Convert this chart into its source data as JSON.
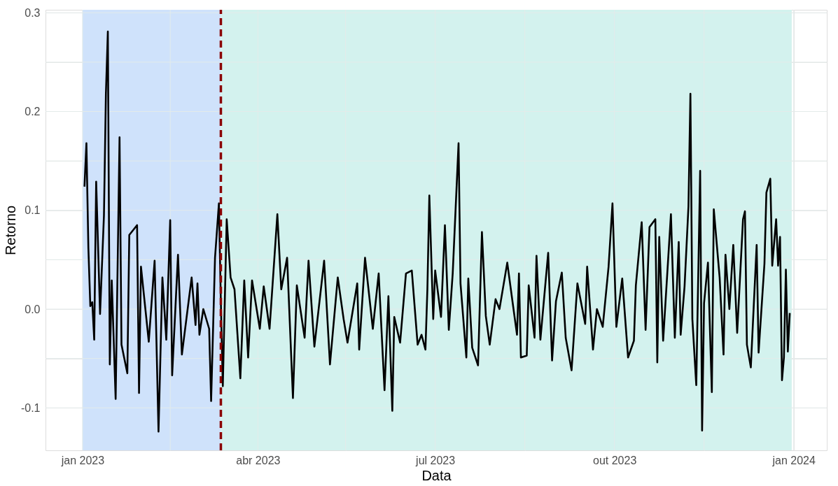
{
  "chart_data": {
    "type": "line",
    "xlabel": "Data",
    "ylabel": "Retorno",
    "x": [
      "2023-01-02",
      "2023-01-03",
      "2023-01-04",
      "2023-01-05",
      "2023-01-06",
      "2023-01-07",
      "2023-01-08",
      "2023-01-10",
      "2023-01-12",
      "2023-01-13",
      "2023-01-14",
      "2023-01-15",
      "2023-01-16",
      "2023-01-18",
      "2023-01-20",
      "2023-01-21",
      "2023-01-24",
      "2023-01-25",
      "2023-01-29",
      "2023-01-30",
      "2023-01-31",
      "2023-02-04",
      "2023-02-07",
      "2023-02-09",
      "2023-02-11",
      "2023-02-13",
      "2023-02-15",
      "2023-02-16",
      "2023-02-19",
      "2023-02-21",
      "2023-02-26",
      "2023-02-28",
      "2023-03-01",
      "2023-03-02",
      "2023-03-04",
      "2023-03-07",
      "2023-03-08",
      "2023-03-10",
      "2023-03-12",
      "2023-03-13",
      "2023-03-14",
      "2023-03-16",
      "2023-03-18",
      "2023-03-20",
      "2023-03-23",
      "2023-03-25",
      "2023-03-27",
      "2023-03-29",
      "2023-04-02",
      "2023-04-04",
      "2023-04-07",
      "2023-04-11",
      "2023-04-13",
      "2023-04-16",
      "2023-04-19",
      "2023-04-21",
      "2023-04-25",
      "2023-04-27",
      "2023-04-30",
      "2023-05-05",
      "2023-05-08",
      "2023-05-12",
      "2023-05-15",
      "2023-05-17",
      "2023-05-22",
      "2023-05-23",
      "2023-05-26",
      "2023-05-30",
      "2023-06-02",
      "2023-06-05",
      "2023-06-07",
      "2023-06-09",
      "2023-06-10",
      "2023-06-13",
      "2023-06-16",
      "2023-06-19",
      "2023-06-22",
      "2023-06-24",
      "2023-06-26",
      "2023-06-27",
      "2023-06-28",
      "2023-06-30",
      "2023-07-01",
      "2023-07-04",
      "2023-07-06",
      "2023-07-08",
      "2023-07-10",
      "2023-07-13",
      "2023-07-14",
      "2023-07-17",
      "2023-07-18",
      "2023-07-20",
      "2023-07-23",
      "2023-07-25",
      "2023-07-27",
      "2023-07-29",
      "2023-08-01",
      "2023-08-03",
      "2023-08-07",
      "2023-08-10",
      "2023-08-12",
      "2023-08-13",
      "2023-08-14",
      "2023-08-17",
      "2023-08-18",
      "2023-08-21",
      "2023-08-22",
      "2023-08-24",
      "2023-08-28",
      "2023-08-30",
      "2023-09-01",
      "2023-09-04",
      "2023-09-06",
      "2023-09-09",
      "2023-09-12",
      "2023-09-16",
      "2023-09-17",
      "2023-09-20",
      "2023-09-22",
      "2023-09-25",
      "2023-09-28",
      "2023-09-30",
      "2023-10-02",
      "2023-10-05",
      "2023-10-08",
      "2023-10-11",
      "2023-10-12",
      "2023-10-15",
      "2023-10-17",
      "2023-10-19",
      "2023-10-22",
      "2023-10-23",
      "2023-10-24",
      "2023-10-26",
      "2023-10-30",
      "2023-11-01",
      "2023-11-03",
      "2023-11-04",
      "2023-11-06",
      "2023-11-08",
      "2023-11-09",
      "2023-11-10",
      "2023-11-12",
      "2023-11-14",
      "2023-11-15",
      "2023-11-16",
      "2023-11-18",
      "2023-11-20",
      "2023-11-21",
      "2023-11-24",
      "2023-11-26",
      "2023-11-27",
      "2023-11-29",
      "2023-12-01",
      "2023-12-03",
      "2023-12-06",
      "2023-12-07",
      "2023-12-08",
      "2023-12-10",
      "2023-12-13",
      "2023-12-14",
      "2023-12-17",
      "2023-12-18",
      "2023-12-20",
      "2023-12-21",
      "2023-12-23",
      "2023-12-24",
      "2023-12-25",
      "2023-12-26",
      "2023-12-27",
      "2023-12-28",
      "2023-12-29",
      "2023-12-30"
    ],
    "series": [
      {
        "color": "#000000",
        "values": [
          0.124,
          0.168,
          0.062,
          0.003,
          0.007,
          -0.031,
          0.129,
          -0.005,
          0.095,
          0.218,
          0.281,
          -0.056,
          0.029,
          -0.091,
          0.174,
          -0.036,
          -0.065,
          0.075,
          0.085,
          -0.085,
          0.043,
          -0.033,
          0.049,
          -0.124,
          0.032,
          -0.031,
          0.09,
          -0.067,
          0.055,
          -0.046,
          0.032,
          -0.016,
          0.026,
          -0.026,
          0.0,
          -0.02,
          -0.093,
          0.052,
          0.107,
          0.007,
          -0.078,
          0.091,
          0.032,
          0.02,
          -0.07,
          0.029,
          -0.049,
          0.029,
          -0.02,
          0.023,
          -0.02,
          0.096,
          0.02,
          0.052,
          -0.09,
          0.024,
          -0.029,
          0.049,
          -0.038,
          0.049,
          -0.056,
          0.032,
          -0.01,
          -0.034,
          0.026,
          -0.041,
          0.052,
          -0.02,
          0.036,
          -0.082,
          0.013,
          -0.103,
          -0.008,
          -0.034,
          0.036,
          0.039,
          -0.036,
          -0.026,
          -0.041,
          0.02,
          0.115,
          -0.01,
          0.039,
          -0.008,
          0.085,
          -0.021,
          0.036,
          0.168,
          0.026,
          -0.049,
          0.031,
          -0.039,
          -0.057,
          0.078,
          -0.007,
          -0.036,
          0.01,
          0.0,
          0.047,
          0.003,
          -0.026,
          0.036,
          -0.049,
          -0.047,
          0.024,
          -0.029,
          0.054,
          -0.031,
          0.057,
          -0.052,
          0.008,
          0.037,
          -0.029,
          -0.062,
          0.026,
          -0.015,
          0.043,
          -0.041,
          0.0,
          -0.018,
          0.043,
          0.107,
          -0.018,
          0.031,
          -0.049,
          -0.032,
          0.024,
          0.088,
          -0.021,
          0.083,
          0.091,
          -0.054,
          0.073,
          -0.032,
          0.096,
          -0.029,
          0.068,
          -0.026,
          0.023,
          0.104,
          0.218,
          -0.01,
          -0.077,
          0.14,
          -0.123,
          0.006,
          0.047,
          -0.084,
          0.101,
          0.032,
          -0.046,
          0.055,
          0.0,
          0.065,
          -0.024,
          0.091,
          0.099,
          -0.036,
          -0.059,
          0.065,
          -0.044,
          0.046,
          0.118,
          0.132,
          0.044,
          0.091,
          0.044,
          0.073,
          -0.072,
          -0.049,
          0.04,
          -0.043,
          -0.004
        ]
      }
    ],
    "xlim": [
      "2022-12-13",
      "2024-01-18"
    ],
    "xticks": [
      {
        "value": "2023-01-01",
        "label": "jan 2023"
      },
      {
        "value": "2023-02-15",
        "label": null
      },
      {
        "value": "2023-04-01",
        "label": "abr 2023"
      },
      {
        "value": "2023-05-16",
        "label": null
      },
      {
        "value": "2023-07-01",
        "label": "jul 2023"
      },
      {
        "value": "2023-08-16",
        "label": null
      },
      {
        "value": "2023-10-01",
        "label": "out 2023"
      },
      {
        "value": "2023-11-16",
        "label": null
      },
      {
        "value": "2024-01-01",
        "label": "jan 2024"
      }
    ],
    "ylim": [
      -0.143,
      0.303
    ],
    "yticks": [
      {
        "value": -0.1,
        "label": "-0.1"
      },
      {
        "value": -0.05,
        "label": null
      },
      {
        "value": 0,
        "label": "0.0"
      },
      {
        "value": 0.05,
        "label": null
      },
      {
        "value": 0.1,
        "label": "0.1"
      },
      {
        "value": 0.15,
        "label": null
      },
      {
        "value": 0.2,
        "label": "0.2"
      },
      {
        "value": 0.25,
        "label": null
      },
      {
        "value": 0.3,
        "label": "0.3"
      }
    ],
    "bands": [
      {
        "axis": "x",
        "from": "2023-01-01",
        "to": "2023-03-13",
        "color": "#cfe2fb"
      },
      {
        "axis": "x",
        "from": "2023-03-13",
        "to": "2023-12-31",
        "color": "#d3f2ee"
      }
    ],
    "ref_lines": [
      {
        "axis": "x",
        "value": "2023-03-13",
        "color": "#8b0000",
        "line_style": "dashed"
      }
    ],
    "grid": true,
    "line_style": "solid"
  }
}
